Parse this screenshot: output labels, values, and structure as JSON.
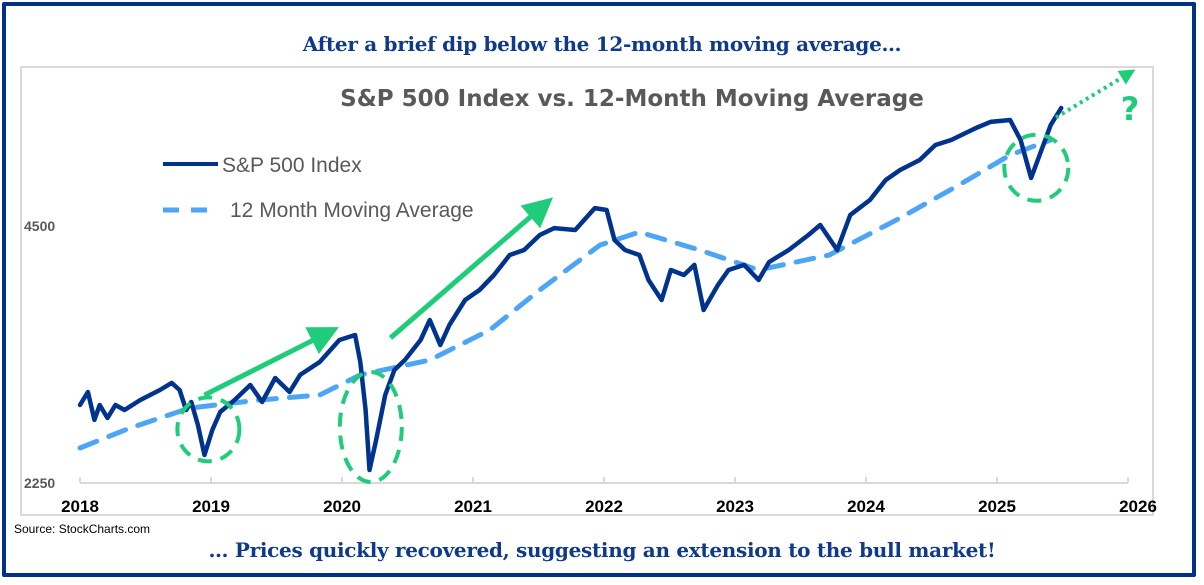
{
  "header": {
    "headline_top": "After a brief dip below the 12-month moving average…",
    "headline_bottom": "… Prices quickly recovered, suggesting an extension to the bull market!",
    "source": "Source: StockCharts.com"
  },
  "colors": {
    "frame": "#003087",
    "headline": "#0f3a8a",
    "sp500": "#00338d",
    "moving_average": "#4da6f5",
    "annotation_green": "#1fcc7a",
    "axis": "#d9d9d9"
  },
  "chart_data": {
    "type": "line",
    "title": "S&P 500 Index vs. 12-Month Moving Average",
    "xlabel": "",
    "ylabel": "",
    "xlim": [
      2018,
      2026
    ],
    "ylim": [
      2250,
      5600
    ],
    "x_ticks": [
      "2018",
      "2019",
      "2020",
      "2021",
      "2022",
      "2023",
      "2024",
      "2025",
      "2026"
    ],
    "y_ticks": [
      2250,
      4500
    ],
    "y_tick_labels": [
      "2250",
      "4500"
    ],
    "grid": false,
    "legend_position": "top-left",
    "legend": [
      "S&P 500 Index",
      "12 Month Moving Average"
    ],
    "series": [
      {
        "name": "S&P 500 Index",
        "style": "solid",
        "x": [
          2018.0,
          2018.06,
          2018.11,
          2018.15,
          2018.21,
          2018.27,
          2018.34,
          2018.46,
          2018.61,
          2018.7,
          2018.76,
          2018.81,
          2018.85,
          2018.9,
          2018.95,
          2019.01,
          2019.07,
          2019.18,
          2019.3,
          2019.39,
          2019.49,
          2019.6,
          2019.68,
          2019.83,
          2019.98,
          2020.1,
          2020.14,
          2020.18,
          2020.21,
          2020.26,
          2020.33,
          2020.4,
          2020.48,
          2020.6,
          2020.67,
          2020.75,
          2020.82,
          2020.94,
          2021.05,
          2021.16,
          2021.28,
          2021.39,
          2021.51,
          2021.62,
          2021.78,
          2021.93,
          2022.02,
          2022.08,
          2022.16,
          2022.27,
          2022.34,
          2022.44,
          2022.51,
          2022.61,
          2022.69,
          2022.76,
          2022.87,
          2022.95,
          2023.07,
          2023.18,
          2023.26,
          2023.41,
          2023.56,
          2023.65,
          2023.78,
          2023.88,
          2024.03,
          2024.15,
          2024.26,
          2024.41,
          2024.53,
          2024.65,
          2024.84,
          2024.95,
          2025.1,
          2025.18,
          2025.26,
          2025.34,
          2025.41,
          2025.49
        ],
        "values": [
          2933,
          3047,
          2802,
          2933,
          2819,
          2933,
          2889,
          2977,
          3064,
          3126,
          3064,
          2889,
          2959,
          2758,
          2495,
          2714,
          2872,
          2977,
          3108,
          2959,
          3169,
          3047,
          3196,
          3309,
          3502,
          3546,
          3309,
          2889,
          2364,
          2626,
          3020,
          3239,
          3327,
          3502,
          3677,
          3458,
          3633,
          3852,
          3940,
          4071,
          4246,
          4290,
          4421,
          4482,
          4465,
          4657,
          4640,
          4377,
          4290,
          4246,
          4027,
          3852,
          4115,
          4071,
          4159,
          3765,
          3984,
          4115,
          4159,
          4027,
          4185,
          4290,
          4421,
          4509,
          4290,
          4597,
          4728,
          4903,
          4990,
          5078,
          5209,
          5253,
          5358,
          5411,
          5428,
          5253,
          4920,
          5165,
          5384,
          5533
        ]
      },
      {
        "name": "12 Month Moving Average",
        "style": "dashed",
        "x": [
          2018.0,
          2018.38,
          2018.84,
          2019.37,
          2019.83,
          2020.14,
          2020.67,
          2021.13,
          2021.51,
          2021.97,
          2022.27,
          2022.73,
          2023.18,
          2023.72,
          2024.26,
          2024.71,
          2025.1,
          2025.41
        ],
        "values": [
          2556,
          2731,
          2907,
          2977,
          3020,
          3196,
          3327,
          3590,
          3940,
          4334,
          4447,
          4290,
          4115,
          4246,
          4570,
          4859,
          5122,
          5253
        ]
      }
    ],
    "annotations": {
      "dip_circles": [
        {
          "label": "late-2018 dip",
          "center_x": 2018.98,
          "center_value": 2720
        },
        {
          "label": "2020 dip",
          "center_x": 2020.22,
          "center_value": 2740
        },
        {
          "label": "2025 dip",
          "center_x": 2025.3,
          "center_value": 5010
        }
      ],
      "trend_arrows": [
        {
          "style": "solid",
          "from": [
            2018.95,
            3020
          ],
          "to": [
            2019.92,
            3590
          ]
        },
        {
          "style": "solid",
          "from": [
            2020.37,
            3520
          ],
          "to": [
            2021.57,
            4700
          ]
        },
        {
          "style": "dotted",
          "from": [
            2025.45,
            5450
          ],
          "to": [
            2026.05,
            5860
          ]
        }
      ],
      "question_mark": "?"
    }
  }
}
